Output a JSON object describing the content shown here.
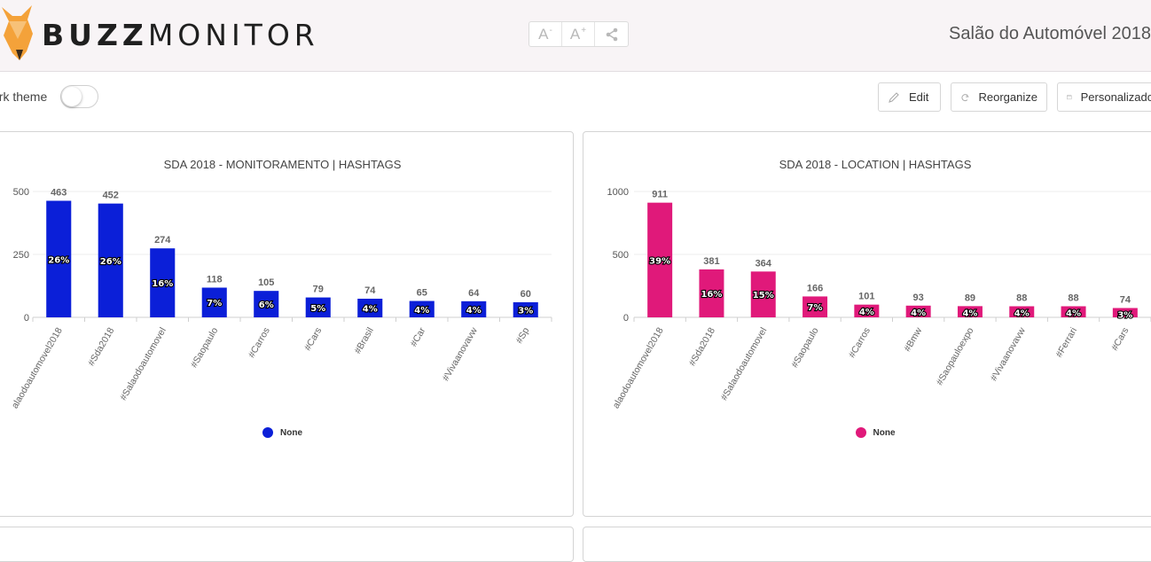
{
  "header": {
    "brand_bold": "BUZZ",
    "brand_light": "MONITOR",
    "report_title": "Salão do Automóvel 2018",
    "tools": [
      {
        "icon": "font-decrease-icon",
        "glyph": "A",
        "mark": "-"
      },
      {
        "icon": "font-increase-icon",
        "glyph": "A",
        "mark": "+"
      },
      {
        "icon": "share-icon",
        "glyph": "⋖",
        "mark": ""
      }
    ]
  },
  "toolbar": {
    "dark_theme_label": "ark theme",
    "dark_theme_on": false,
    "edit_label": "Edit",
    "reorganize_label": "Reorganize",
    "custom_label": "Personalizado"
  },
  "charts": [
    {
      "title": "SDA 2018 - MONITORAMENTO | HASHTAGS",
      "color": "#0b1fd8",
      "legend": "None",
      "chart_data": {
        "type": "bar",
        "categories": [
          "alaodoautomovel2018",
          "#Sda2018",
          "#Salaodoautomovel",
          "#Saopaulo",
          "#Carros",
          "#Cars",
          "#Brasil",
          "#Car",
          "#Vivaanovavw",
          "#Sp"
        ],
        "values": [
          463,
          452,
          274,
          118,
          105,
          79,
          74,
          65,
          64,
          60
        ],
        "percent_labels": [
          "26%",
          "26%",
          "16%",
          "7%",
          "6%",
          "5%",
          "4%",
          "4%",
          "4%",
          "3%"
        ],
        "yticks": [
          0,
          250,
          500
        ],
        "ylim": [
          0,
          520
        ],
        "grid": true,
        "legend_position": "bottom"
      }
    },
    {
      "title": "SDA 2018 - LOCATION | HASHTAGS",
      "color": "#e0197a",
      "legend": "None",
      "chart_data": {
        "type": "bar",
        "categories": [
          "alaodoautomovel2018",
          "#Sda2018",
          "#Salaodoautomovel",
          "#Saopaulo",
          "#Carros",
          "#Bmw",
          "#Saopauloexpo",
          "#Vivaanovavw",
          "#Ferrari",
          "#Cars"
        ],
        "values": [
          911,
          381,
          364,
          166,
          101,
          93,
          89,
          88,
          88,
          74
        ],
        "percent_labels": [
          "39%",
          "16%",
          "15%",
          "7%",
          "4%",
          "4%",
          "4%",
          "4%",
          "4%",
          "3%"
        ],
        "yticks": [
          0,
          500,
          1000
        ],
        "ylim": [
          0,
          1040
        ],
        "grid": true,
        "legend_position": "bottom"
      }
    }
  ]
}
